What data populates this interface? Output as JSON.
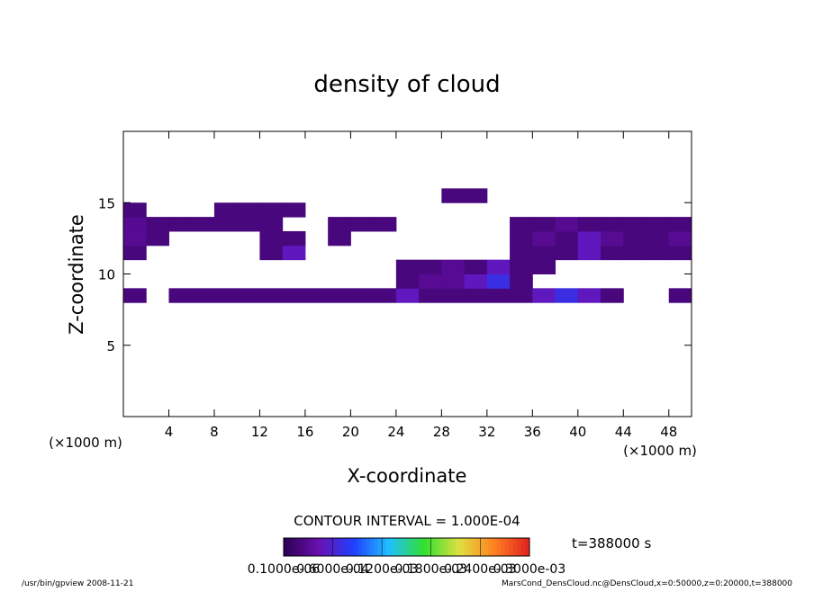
{
  "chart_data": {
    "type": "contour",
    "title": "density of cloud",
    "x_label": "X-coordinate",
    "y_label": "Z-coordinate",
    "x_unit_label": "(×1000 m)",
    "xlim": [
      0,
      50
    ],
    "ylim": [
      0,
      20
    ],
    "xticks": [
      4,
      8,
      12,
      16,
      20,
      24,
      28,
      32,
      36,
      40,
      44,
      48
    ],
    "yticks": [
      5,
      10,
      15
    ],
    "x": [
      0,
      2,
      4,
      6,
      8,
      10,
      12,
      14,
      16,
      18,
      20,
      22,
      24,
      26,
      28,
      30,
      32,
      34,
      36,
      38,
      40,
      42,
      44,
      46,
      48,
      50
    ],
    "y": [
      8,
      9,
      10,
      11,
      12,
      13,
      14,
      15,
      16
    ],
    "z": [
      [
        2e-05,
        null,
        2e-05,
        2e-05,
        2e-05,
        2e-05,
        2e-05,
        2e-05,
        2e-05,
        2e-05,
        2e-05,
        2e-05,
        5e-05,
        2e-05,
        2e-05,
        2e-05,
        2e-05,
        2e-05,
        5e-05,
        7e-05,
        5e-05,
        2e-05,
        null,
        null,
        2e-05
      ],
      [
        null,
        null,
        null,
        null,
        null,
        null,
        null,
        null,
        null,
        null,
        null,
        null,
        2e-05,
        3e-05,
        3e-05,
        5e-05,
        7e-05,
        2e-05,
        null,
        null,
        null,
        null,
        null,
        null,
        null
      ],
      [
        null,
        null,
        null,
        null,
        null,
        null,
        null,
        null,
        null,
        null,
        null,
        null,
        2e-05,
        2e-05,
        3e-05,
        2e-05,
        5e-05,
        2e-05,
        2e-05,
        null,
        null,
        null,
        null,
        null,
        null
      ],
      [
        2e-05,
        null,
        null,
        null,
        null,
        null,
        2e-05,
        5e-05,
        null,
        null,
        null,
        null,
        null,
        null,
        null,
        null,
        null,
        2e-05,
        2e-05,
        2e-05,
        5e-05,
        2e-05,
        2e-05,
        2e-05,
        2e-05
      ],
      [
        3e-05,
        2e-05,
        null,
        null,
        null,
        null,
        2e-05,
        2e-05,
        null,
        2e-05,
        null,
        null,
        null,
        null,
        null,
        null,
        null,
        2e-05,
        3e-05,
        2e-05,
        5e-05,
        3e-05,
        2e-05,
        2e-05,
        3e-05
      ],
      [
        3e-05,
        2e-05,
        2e-05,
        2e-05,
        2e-05,
        2e-05,
        2e-05,
        null,
        null,
        2e-05,
        2e-05,
        2e-05,
        null,
        null,
        null,
        null,
        null,
        2e-05,
        2e-05,
        3e-05,
        2e-05,
        2e-05,
        2e-05,
        2e-05,
        2e-05
      ],
      [
        2e-05,
        null,
        null,
        null,
        2e-05,
        2e-05,
        2e-05,
        2e-05,
        null,
        null,
        null,
        null,
        null,
        null,
        null,
        null,
        null,
        null,
        null,
        null,
        null,
        null,
        null,
        null,
        null
      ],
      [
        null,
        null,
        null,
        null,
        null,
        null,
        null,
        null,
        null,
        null,
        null,
        null,
        null,
        null,
        2e-05,
        2e-05,
        null,
        null,
        null,
        null,
        null,
        null,
        null,
        null,
        null
      ]
    ],
    "colormap": [
      "#2a0050",
      "#6a10b0",
      "#2040ff",
      "#20c0ff",
      "#30e030",
      "#e0e040",
      "#ff8020",
      "#e02020"
    ],
    "clim": [
      1e-07,
      0.0003
    ],
    "colorbar_ticks": [
      {
        "value": 1e-07,
        "label": "0.1000e-06"
      },
      {
        "value": 6e-05,
        "label": "0.6000e-04"
      },
      {
        "value": 0.00012,
        "label": "0.1200e-03"
      },
      {
        "value": 0.00018,
        "label": "0.1800e-03"
      },
      {
        "value": 0.00024,
        "label": "0.2400e-03"
      },
      {
        "value": 0.0003,
        "label": "0.3000e-03"
      }
    ],
    "contour_interval_label": "CONTOUR INTERVAL = 1.000E-04",
    "time_label": "t=388000 s",
    "footer_left": "/usr/bin/gpview  2008-11-21",
    "footer_right": "MarsCond_DensCloud.nc@DensCloud,x=0:50000,z=0:20000,t=388000"
  }
}
